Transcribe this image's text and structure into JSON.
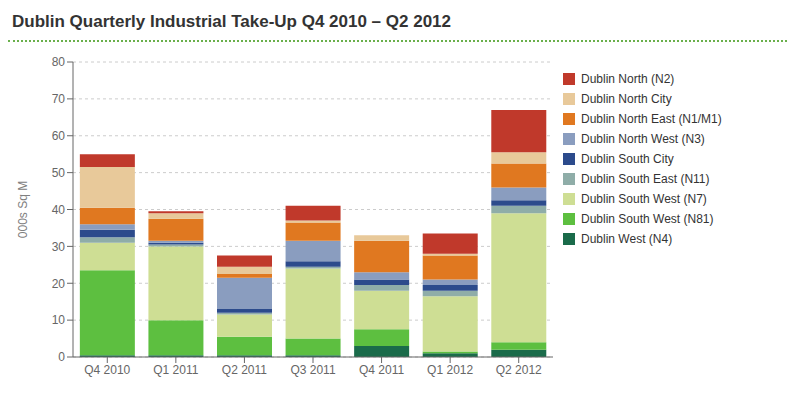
{
  "chart_data": {
    "type": "bar",
    "title": "Dublin Quarterly Industrial Take-Up Q4 2010 – Q2 2012",
    "ylabel": "000s Sq M",
    "categories": [
      "Q4 2010",
      "Q1 2011",
      "Q2 2011",
      "Q3 2011",
      "Q4 2011",
      "Q1 2012",
      "Q2 2012"
    ],
    "series": [
      {
        "name": "Dublin West (N4)",
        "color": "#1a6b4a",
        "values": [
          0.5,
          0.5,
          0.5,
          0.5,
          3.0,
          1.0,
          2.0
        ]
      },
      {
        "name": "Dublin South West (N81)",
        "color": "#5dbf40",
        "values": [
          23.0,
          9.5,
          5.0,
          4.5,
          4.5,
          0.5,
          2.0
        ]
      },
      {
        "name": "Dublin South West (N7)",
        "color": "#cede94",
        "values": [
          7.5,
          20.0,
          6.0,
          19.0,
          10.5,
          15.0,
          35.0
        ]
      },
      {
        "name": "Dublin South East (N11)",
        "color": "#8fada8",
        "values": [
          1.5,
          0.5,
          0.5,
          0.5,
          1.5,
          1.5,
          2.0
        ]
      },
      {
        "name": "Dublin South City",
        "color": "#2c4b8c",
        "values": [
          2.0,
          0.5,
          1.0,
          1.5,
          1.5,
          1.5,
          1.5
        ]
      },
      {
        "name": "Dublin North West (N3)",
        "color": "#8a9dbf",
        "values": [
          1.5,
          0.5,
          8.5,
          5.5,
          2.0,
          1.5,
          3.5
        ]
      },
      {
        "name": "Dublin North East (N1/M1)",
        "color": "#e07820",
        "values": [
          4.5,
          6.0,
          1.0,
          5.0,
          8.5,
          6.5,
          6.5
        ]
      },
      {
        "name": "Dublin North City",
        "color": "#e8c99a",
        "values": [
          11.0,
          1.5,
          2.0,
          0.5,
          1.5,
          0.5,
          3.0
        ]
      },
      {
        "name": "Dublin North (N2)",
        "color": "#c0392b",
        "values": [
          3.5,
          0.5,
          3.0,
          4.0,
          0.0,
          5.5,
          11.5
        ]
      }
    ],
    "ylim": [
      0,
      80
    ],
    "yticks": [
      0,
      10,
      20,
      30,
      40,
      50,
      60,
      70,
      80
    ],
    "grid": true,
    "stacked": true,
    "legend": "right"
  }
}
